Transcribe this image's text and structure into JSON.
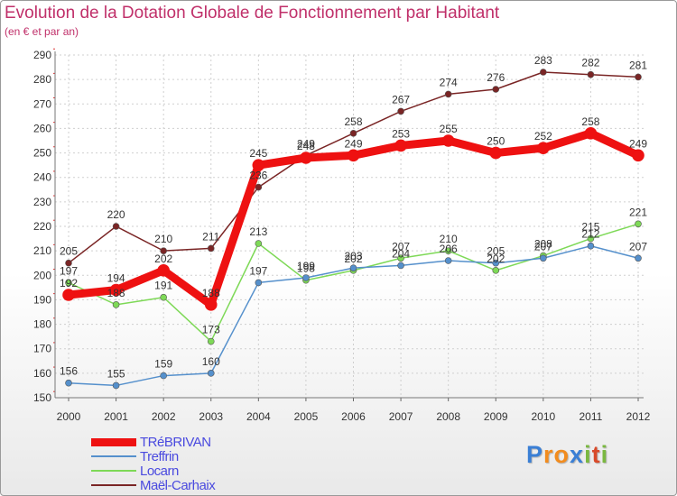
{
  "chart_data": {
    "type": "line",
    "title": "Evolution de la Dotation Globale de Fonctionnement par Habitant",
    "subtitle": "(en € et par an)",
    "xlabel": "",
    "ylabel": "",
    "x": [
      "2000",
      "2001",
      "2002",
      "2003",
      "2004",
      "2005",
      "2006",
      "2007",
      "2008",
      "2009",
      "2010",
      "2011",
      "2012"
    ],
    "ylim": [
      150,
      290
    ],
    "yticks": [
      "150",
      "160",
      "170",
      "180",
      "190",
      "200",
      "210",
      "220",
      "230",
      "240",
      "250",
      "260",
      "270",
      "280",
      "290"
    ],
    "grid": true,
    "legend_position": "bottom-left",
    "series": [
      {
        "name": "Maël-Carhaix",
        "color": "#7a2525",
        "values": [
          205,
          220,
          210,
          211,
          236,
          249,
          258,
          267,
          274,
          276,
          283,
          282,
          281
        ]
      },
      {
        "name": "Locarn",
        "color": "#7ed957",
        "values": [
          197,
          188,
          191,
          173,
          213,
          198,
          202,
          207,
          210,
          202,
          208,
          215,
          221
        ]
      },
      {
        "name": "Treffrin",
        "color": "#5590cc",
        "values": [
          156,
          155,
          159,
          160,
          197,
          199,
          203,
          204,
          206,
          205,
          207,
          212,
          207
        ]
      },
      {
        "name": "TRéBRIVAN",
        "color": "#ee1111",
        "values": [
          192,
          194,
          202,
          188,
          245,
          248,
          249,
          253,
          255,
          250,
          252,
          258,
          249
        ]
      }
    ],
    "legend_order": [
      "TRéBRIVAN",
      "Treffrin",
      "Locarn",
      "Maël-Carhaix"
    ]
  },
  "brand": {
    "letters": [
      "P",
      "r",
      "o",
      "x",
      "i",
      "t",
      "i"
    ],
    "colors": [
      "#3a7fd5",
      "#f28c1e",
      "#f28c1e",
      "#3a7fd5",
      "#7ab840",
      "#d94a2a",
      "#7ab840"
    ]
  }
}
